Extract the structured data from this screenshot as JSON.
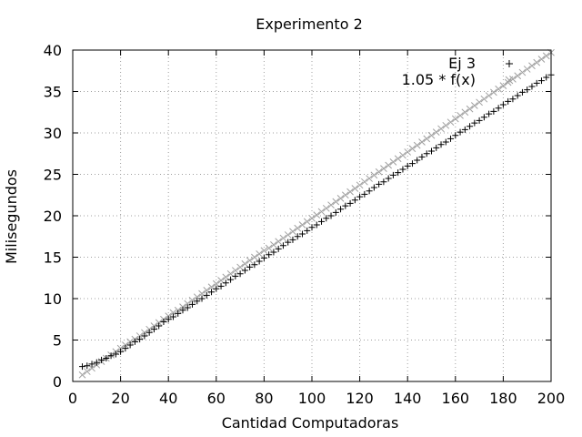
{
  "chart_data": {
    "type": "scatter",
    "title": "Experimento 2",
    "xlabel": "Cantidad Computadoras",
    "ylabel": "Milisegundos",
    "xlim": [
      0,
      200
    ],
    "ylim": [
      0,
      40
    ],
    "xticks": [
      0,
      20,
      40,
      60,
      80,
      100,
      120,
      140,
      160,
      180,
      200
    ],
    "yticks": [
      0,
      5,
      10,
      15,
      20,
      25,
      30,
      35,
      40
    ],
    "grid": true,
    "legend_position": "top-right",
    "series": [
      {
        "name": "Ej 3",
        "marker": "+",
        "color": "#000000",
        "x": [
          4,
          6,
          8,
          10,
          12,
          14,
          16,
          18,
          20,
          22,
          24,
          26,
          28,
          30,
          32,
          34,
          36,
          38,
          40,
          42,
          44,
          46,
          48,
          50,
          52,
          54,
          56,
          58,
          60,
          62,
          64,
          66,
          68,
          70,
          72,
          74,
          76,
          78,
          80,
          82,
          84,
          86,
          88,
          90,
          92,
          94,
          96,
          98,
          100,
          102,
          104,
          106,
          108,
          110,
          112,
          114,
          116,
          118,
          120,
          122,
          124,
          126,
          128,
          130,
          132,
          134,
          136,
          138,
          140,
          142,
          144,
          146,
          148,
          150,
          152,
          154,
          156,
          158,
          160,
          162,
          164,
          166,
          168,
          170,
          172,
          174,
          176,
          178,
          180,
          182,
          184,
          186,
          188,
          190,
          192,
          194,
          196,
          198,
          200
        ],
        "y": [
          1.8,
          1.9,
          2.1,
          2.3,
          2.6,
          2.8,
          3.1,
          3.3,
          3.6,
          4.0,
          4.4,
          4.8,
          5.1,
          5.5,
          5.9,
          6.3,
          6.7,
          7.2,
          7.5,
          7.8,
          8.2,
          8.6,
          8.9,
          9.3,
          9.7,
          10.0,
          10.4,
          10.8,
          11.2,
          11.5,
          11.9,
          12.3,
          12.7,
          13.0,
          13.4,
          13.8,
          14.1,
          14.5,
          14.9,
          15.3,
          15.6,
          16.0,
          16.4,
          16.8,
          17.1,
          17.5,
          17.8,
          18.2,
          18.6,
          18.9,
          19.3,
          19.7,
          20.0,
          20.4,
          20.8,
          21.2,
          21.5,
          21.9,
          22.3,
          22.6,
          23.0,
          23.4,
          23.8,
          24.1,
          24.5,
          24.9,
          25.2,
          25.6,
          26.0,
          26.3,
          26.7,
          27.1,
          27.5,
          27.8,
          28.2,
          28.6,
          28.9,
          29.3,
          29.7,
          30.1,
          30.4,
          30.8,
          31.2,
          31.5,
          31.9,
          32.3,
          32.6,
          33.0,
          33.4,
          33.8,
          34.1,
          34.5,
          34.9,
          35.2,
          35.6,
          36.0,
          36.3,
          36.7,
          37.0
        ]
      },
      {
        "name": "1.05 * f(x)",
        "marker": "x",
        "color": "#a0a0a0",
        "x": [
          4,
          6,
          8,
          10,
          12,
          14,
          16,
          18,
          20,
          22,
          24,
          26,
          28,
          30,
          32,
          34,
          36,
          38,
          40,
          42,
          44,
          46,
          48,
          50,
          52,
          54,
          56,
          58,
          60,
          62,
          64,
          66,
          68,
          70,
          72,
          74,
          76,
          78,
          80,
          82,
          84,
          86,
          88,
          90,
          92,
          94,
          96,
          98,
          100,
          102,
          104,
          106,
          108,
          110,
          112,
          114,
          116,
          118,
          120,
          122,
          124,
          126,
          128,
          130,
          132,
          134,
          136,
          138,
          140,
          142,
          144,
          146,
          148,
          150,
          152,
          154,
          156,
          158,
          160,
          162,
          164,
          166,
          168,
          170,
          172,
          174,
          176,
          178,
          180,
          182,
          184,
          186,
          188,
          190,
          192,
          194,
          196,
          198,
          200
        ],
        "y": [
          0.8,
          1.2,
          1.6,
          2.0,
          2.4,
          2.8,
          3.2,
          3.6,
          4.0,
          4.4,
          4.8,
          5.1,
          5.5,
          5.9,
          6.3,
          6.7,
          7.1,
          7.5,
          7.9,
          8.3,
          8.6,
          9.0,
          9.4,
          9.8,
          10.2,
          10.6,
          11.0,
          11.4,
          11.8,
          12.2,
          12.6,
          13.0,
          13.4,
          13.8,
          14.2,
          14.6,
          15.0,
          15.4,
          15.8,
          16.1,
          16.5,
          16.9,
          17.3,
          17.7,
          18.1,
          18.5,
          18.9,
          19.3,
          19.7,
          20.1,
          20.5,
          20.9,
          21.3,
          21.7,
          22.1,
          22.5,
          22.9,
          23.3,
          23.7,
          24.1,
          24.5,
          24.9,
          25.3,
          25.7,
          26.1,
          26.5,
          26.9,
          27.3,
          27.7,
          28.1,
          28.5,
          28.9,
          29.3,
          29.7,
          30.1,
          30.5,
          30.9,
          31.3,
          31.7,
          32.1,
          32.5,
          32.9,
          33.3,
          33.7,
          34.1,
          34.5,
          34.9,
          35.3,
          35.7,
          36.1,
          36.5,
          36.9,
          37.3,
          37.7,
          38.1,
          38.5,
          38.9,
          39.3,
          39.7
        ]
      }
    ]
  }
}
